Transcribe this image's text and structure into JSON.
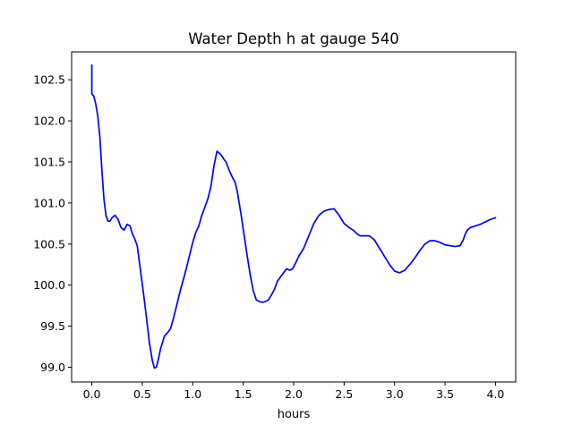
{
  "chart_data": {
    "type": "line",
    "title": "Water Depth h at gauge 540",
    "xlabel": "hours",
    "ylabel": "",
    "xlim": [
      -0.2,
      4.2
    ],
    "ylim": [
      98.82,
      102.84
    ],
    "xticks": [
      0.0,
      0.5,
      1.0,
      1.5,
      2.0,
      2.5,
      3.0,
      3.5,
      4.0
    ],
    "xtick_labels": [
      "0.0",
      "0.5",
      "1.0",
      "1.5",
      "2.0",
      "2.5",
      "3.0",
      "3.5",
      "4.0"
    ],
    "yticks": [
      99.0,
      99.5,
      100.0,
      100.5,
      101.0,
      101.5,
      102.0,
      102.5
    ],
    "ytick_labels": [
      "99.0",
      "99.5",
      "100.0",
      "100.5",
      "101.0",
      "101.5",
      "102.0",
      "102.5"
    ],
    "grid": false,
    "series": [
      {
        "color": "#0000ff",
        "x": [
          0.0,
          0.0,
          0.02,
          0.04,
          0.06,
          0.08,
          0.1,
          0.12,
          0.14,
          0.16,
          0.18,
          0.2,
          0.23,
          0.26,
          0.29,
          0.32,
          0.35,
          0.38,
          0.4,
          0.42,
          0.45,
          0.48,
          0.51,
          0.54,
          0.57,
          0.6,
          0.62,
          0.64,
          0.66,
          0.68,
          0.7,
          0.72,
          0.75,
          0.78,
          0.81,
          0.84,
          0.86,
          0.88,
          0.91,
          0.94,
          0.97,
          1.0,
          1.03,
          1.06,
          1.09,
          1.12,
          1.15,
          1.18,
          1.21,
          1.24,
          1.27,
          1.29,
          1.31,
          1.33,
          1.36,
          1.39,
          1.42,
          1.44,
          1.46,
          1.48,
          1.51,
          1.54,
          1.57,
          1.6,
          1.63,
          1.66,
          1.69,
          1.72,
          1.75,
          1.78,
          1.81,
          1.84,
          1.87,
          1.9,
          1.93,
          1.96,
          1.99,
          2.02,
          2.05,
          2.1,
          2.15,
          2.2,
          2.25,
          2.3,
          2.35,
          2.4,
          2.45,
          2.5,
          2.55,
          2.6,
          2.63,
          2.66,
          2.7,
          2.75,
          2.8,
          2.85,
          2.9,
          2.95,
          3.0,
          3.05,
          3.1,
          3.15,
          3.2,
          3.25,
          3.3,
          3.35,
          3.4,
          3.45,
          3.5,
          3.55,
          3.6,
          3.65,
          3.68,
          3.7,
          3.72,
          3.75,
          3.8,
          3.85,
          3.9,
          3.95,
          4.0
        ],
        "y": [
          102.68,
          102.33,
          102.3,
          102.2,
          102.05,
          101.8,
          101.4,
          101.05,
          100.85,
          100.78,
          100.78,
          100.82,
          100.85,
          100.8,
          100.7,
          100.67,
          100.74,
          100.72,
          100.63,
          100.58,
          100.48,
          100.2,
          99.92,
          99.62,
          99.3,
          99.08,
          98.99,
          99.0,
          99.1,
          99.22,
          99.3,
          99.38,
          99.42,
          99.47,
          99.6,
          99.75,
          99.85,
          99.95,
          100.08,
          100.22,
          100.37,
          100.52,
          100.64,
          100.72,
          100.85,
          100.95,
          101.05,
          101.2,
          101.45,
          101.63,
          101.6,
          101.57,
          101.53,
          101.5,
          101.4,
          101.32,
          101.25,
          101.15,
          101.0,
          100.85,
          100.6,
          100.35,
          100.12,
          99.93,
          99.82,
          99.8,
          99.79,
          99.8,
          99.82,
          99.88,
          99.95,
          100.05,
          100.1,
          100.15,
          100.2,
          100.18,
          100.2,
          100.27,
          100.35,
          100.45,
          100.6,
          100.75,
          100.85,
          100.9,
          100.92,
          100.93,
          100.85,
          100.75,
          100.7,
          100.66,
          100.62,
          100.6,
          100.6,
          100.6,
          100.55,
          100.45,
          100.35,
          100.25,
          100.17,
          100.15,
          100.18,
          100.25,
          100.33,
          100.42,
          100.5,
          100.54,
          100.54,
          100.52,
          100.49,
          100.48,
          100.47,
          100.48,
          100.55,
          100.62,
          100.67,
          100.7,
          100.72,
          100.74,
          100.77,
          100.8,
          100.82
        ]
      }
    ]
  }
}
